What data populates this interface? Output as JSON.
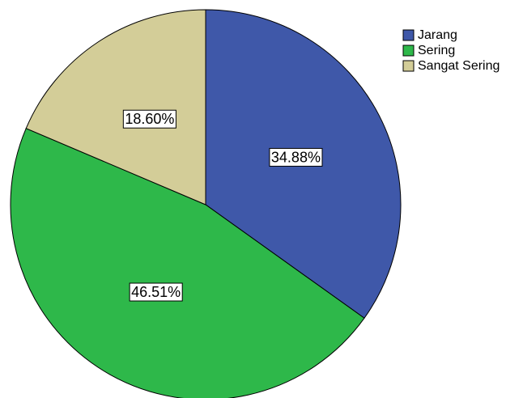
{
  "chart_data": {
    "type": "pie",
    "categories": [
      "Jarang",
      "Sering",
      "Sangat Sering"
    ],
    "values": [
      34.88,
      46.51,
      18.6
    ],
    "value_labels": [
      "34.88%",
      "46.51%",
      "18.60%"
    ],
    "colors": [
      "#3f58a9",
      "#2eb84a",
      "#d3cd98"
    ]
  }
}
